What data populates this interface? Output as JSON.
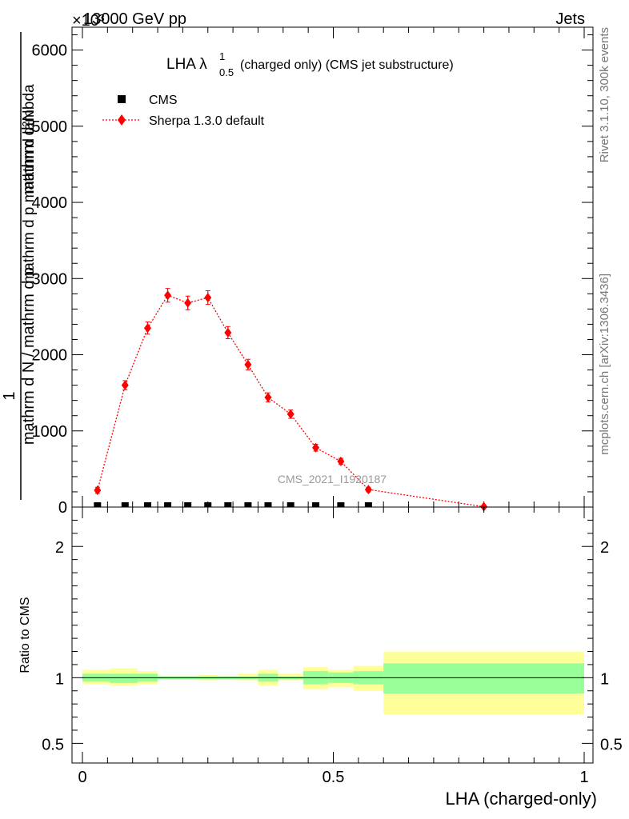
{
  "header": {
    "left": "13000 GeV pp",
    "right": "Jets",
    "exponent": "×10³"
  },
  "side_labels": {
    "rivet": "Rivet 3.1.10,  300k events",
    "mcplots": "mcplots.cern.ch [arXiv:1306.3436]"
  },
  "watermark": "CMS_2021_I1920187",
  "colors": {
    "sherpa": "#ff0000",
    "band_inner": "#99ff99",
    "band_outer": "#ffff99",
    "data": "#000000"
  },
  "chart_data": [
    {
      "type": "scatter",
      "title_main": "LHA λ",
      "title_sup": "1",
      "title_sub": "0.5",
      "title_rest": "(charged only) (CMS jet substructure)",
      "ylabel_lines": [
        "1",
        "mathrm d N / mathrm d p",
        "T",
        "mathrm d p",
        "T",
        "mathrm d lambda",
        "mathrm d",
        "2",
        "N"
      ],
      "ylabel_num": "mathrm d²N",
      "ylabel_den1": "mathrm d N / mathrm d p_T mathrm d p_T mathrm d lambda",
      "ylim": [
        0,
        6300
      ],
      "y_ticks": [
        {
          "v": 0,
          "label": "0"
        },
        {
          "v": 1000,
          "label": "1000"
        },
        {
          "v": 2000,
          "label": "2000"
        },
        {
          "v": 3000,
          "label": "3000"
        },
        {
          "v": 4000,
          "label": "4000"
        },
        {
          "v": 5000,
          "label": "5000"
        },
        {
          "v": 6000,
          "label": "6000"
        }
      ],
      "xlim": [
        0,
        1
      ],
      "legend": [
        {
          "name": "CMS",
          "marker": "square"
        },
        {
          "name": "Sherpa 1.3.0 default",
          "marker": "diamond"
        }
      ],
      "series": [
        {
          "name": "CMS",
          "x": [
            0.03,
            0.085,
            0.13,
            0.17,
            0.21,
            0.25,
            0.29,
            0.33,
            0.37,
            0.415,
            0.465,
            0.515,
            0.57
          ],
          "values": [
            0,
            0,
            0,
            0,
            0,
            0,
            0,
            0,
            0,
            0,
            0,
            0,
            0
          ]
        },
        {
          "name": "Sherpa 1.3.0 default",
          "x": [
            0.03,
            0.085,
            0.13,
            0.17,
            0.21,
            0.25,
            0.29,
            0.33,
            0.37,
            0.415,
            0.465,
            0.515,
            0.57,
            0.8
          ],
          "values": [
            220,
            1600,
            2350,
            2780,
            2680,
            2750,
            2290,
            1870,
            1440,
            1220,
            780,
            600,
            230,
            5
          ],
          "errors": [
            40,
            60,
            80,
            90,
            90,
            90,
            80,
            70,
            60,
            55,
            45,
            40,
            30,
            5
          ]
        }
      ]
    },
    {
      "type": "area",
      "ylabel": "Ratio to CMS",
      "xlabel": "LHA (charged-only)",
      "ylim": [
        0.35,
        2.3
      ],
      "y_ticks": [
        {
          "v": 0.5,
          "label": "0.5"
        },
        {
          "v": 1,
          "label": "1"
        },
        {
          "v": 2,
          "label": "2"
        }
      ],
      "x_ticks": [
        {
          "v": 0,
          "label": "0"
        },
        {
          "v": 0.5,
          "label": "0.5"
        },
        {
          "v": 1,
          "label": "1"
        }
      ],
      "xlim": [
        0,
        1
      ],
      "bins": [
        {
          "lo": 0.0,
          "hi": 0.055,
          "inner": [
            0.97,
            1.03
          ],
          "outer": [
            0.95,
            1.06
          ]
        },
        {
          "lo": 0.055,
          "hi": 0.11,
          "inner": [
            0.96,
            1.03
          ],
          "outer": [
            0.94,
            1.07
          ]
        },
        {
          "lo": 0.11,
          "hi": 0.15,
          "inner": [
            0.97,
            1.03
          ],
          "outer": [
            0.95,
            1.05
          ]
        },
        {
          "lo": 0.15,
          "hi": 0.19,
          "inner": [
            0.99,
            1.01
          ],
          "outer": [
            0.985,
            1.015
          ]
        },
        {
          "lo": 0.19,
          "hi": 0.23,
          "inner": [
            0.99,
            1.01
          ],
          "outer": [
            0.985,
            1.015
          ]
        },
        {
          "lo": 0.23,
          "hi": 0.27,
          "inner": [
            0.99,
            1.01
          ],
          "outer": [
            0.98,
            1.02
          ]
        },
        {
          "lo": 0.27,
          "hi": 0.31,
          "inner": [
            0.99,
            1.01
          ],
          "outer": [
            0.985,
            1.015
          ]
        },
        {
          "lo": 0.31,
          "hi": 0.35,
          "inner": [
            0.99,
            1.01
          ],
          "outer": [
            0.98,
            1.03
          ]
        },
        {
          "lo": 0.35,
          "hi": 0.39,
          "inner": [
            0.97,
            1.03
          ],
          "outer": [
            0.94,
            1.06
          ]
        },
        {
          "lo": 0.39,
          "hi": 0.44,
          "inner": [
            0.99,
            1.01
          ],
          "outer": [
            0.98,
            1.03
          ]
        },
        {
          "lo": 0.44,
          "hi": 0.49,
          "inner": [
            0.95,
            1.05
          ],
          "outer": [
            0.91,
            1.08
          ]
        },
        {
          "lo": 0.49,
          "hi": 0.54,
          "inner": [
            0.96,
            1.04
          ],
          "outer": [
            0.93,
            1.06
          ]
        },
        {
          "lo": 0.54,
          "hi": 0.6,
          "inner": [
            0.95,
            1.05
          ],
          "outer": [
            0.9,
            1.09
          ]
        },
        {
          "lo": 0.6,
          "hi": 1.0,
          "inner": [
            0.88,
            1.11
          ],
          "outer": [
            0.72,
            1.2
          ]
        }
      ],
      "ratio_line": 1
    }
  ]
}
